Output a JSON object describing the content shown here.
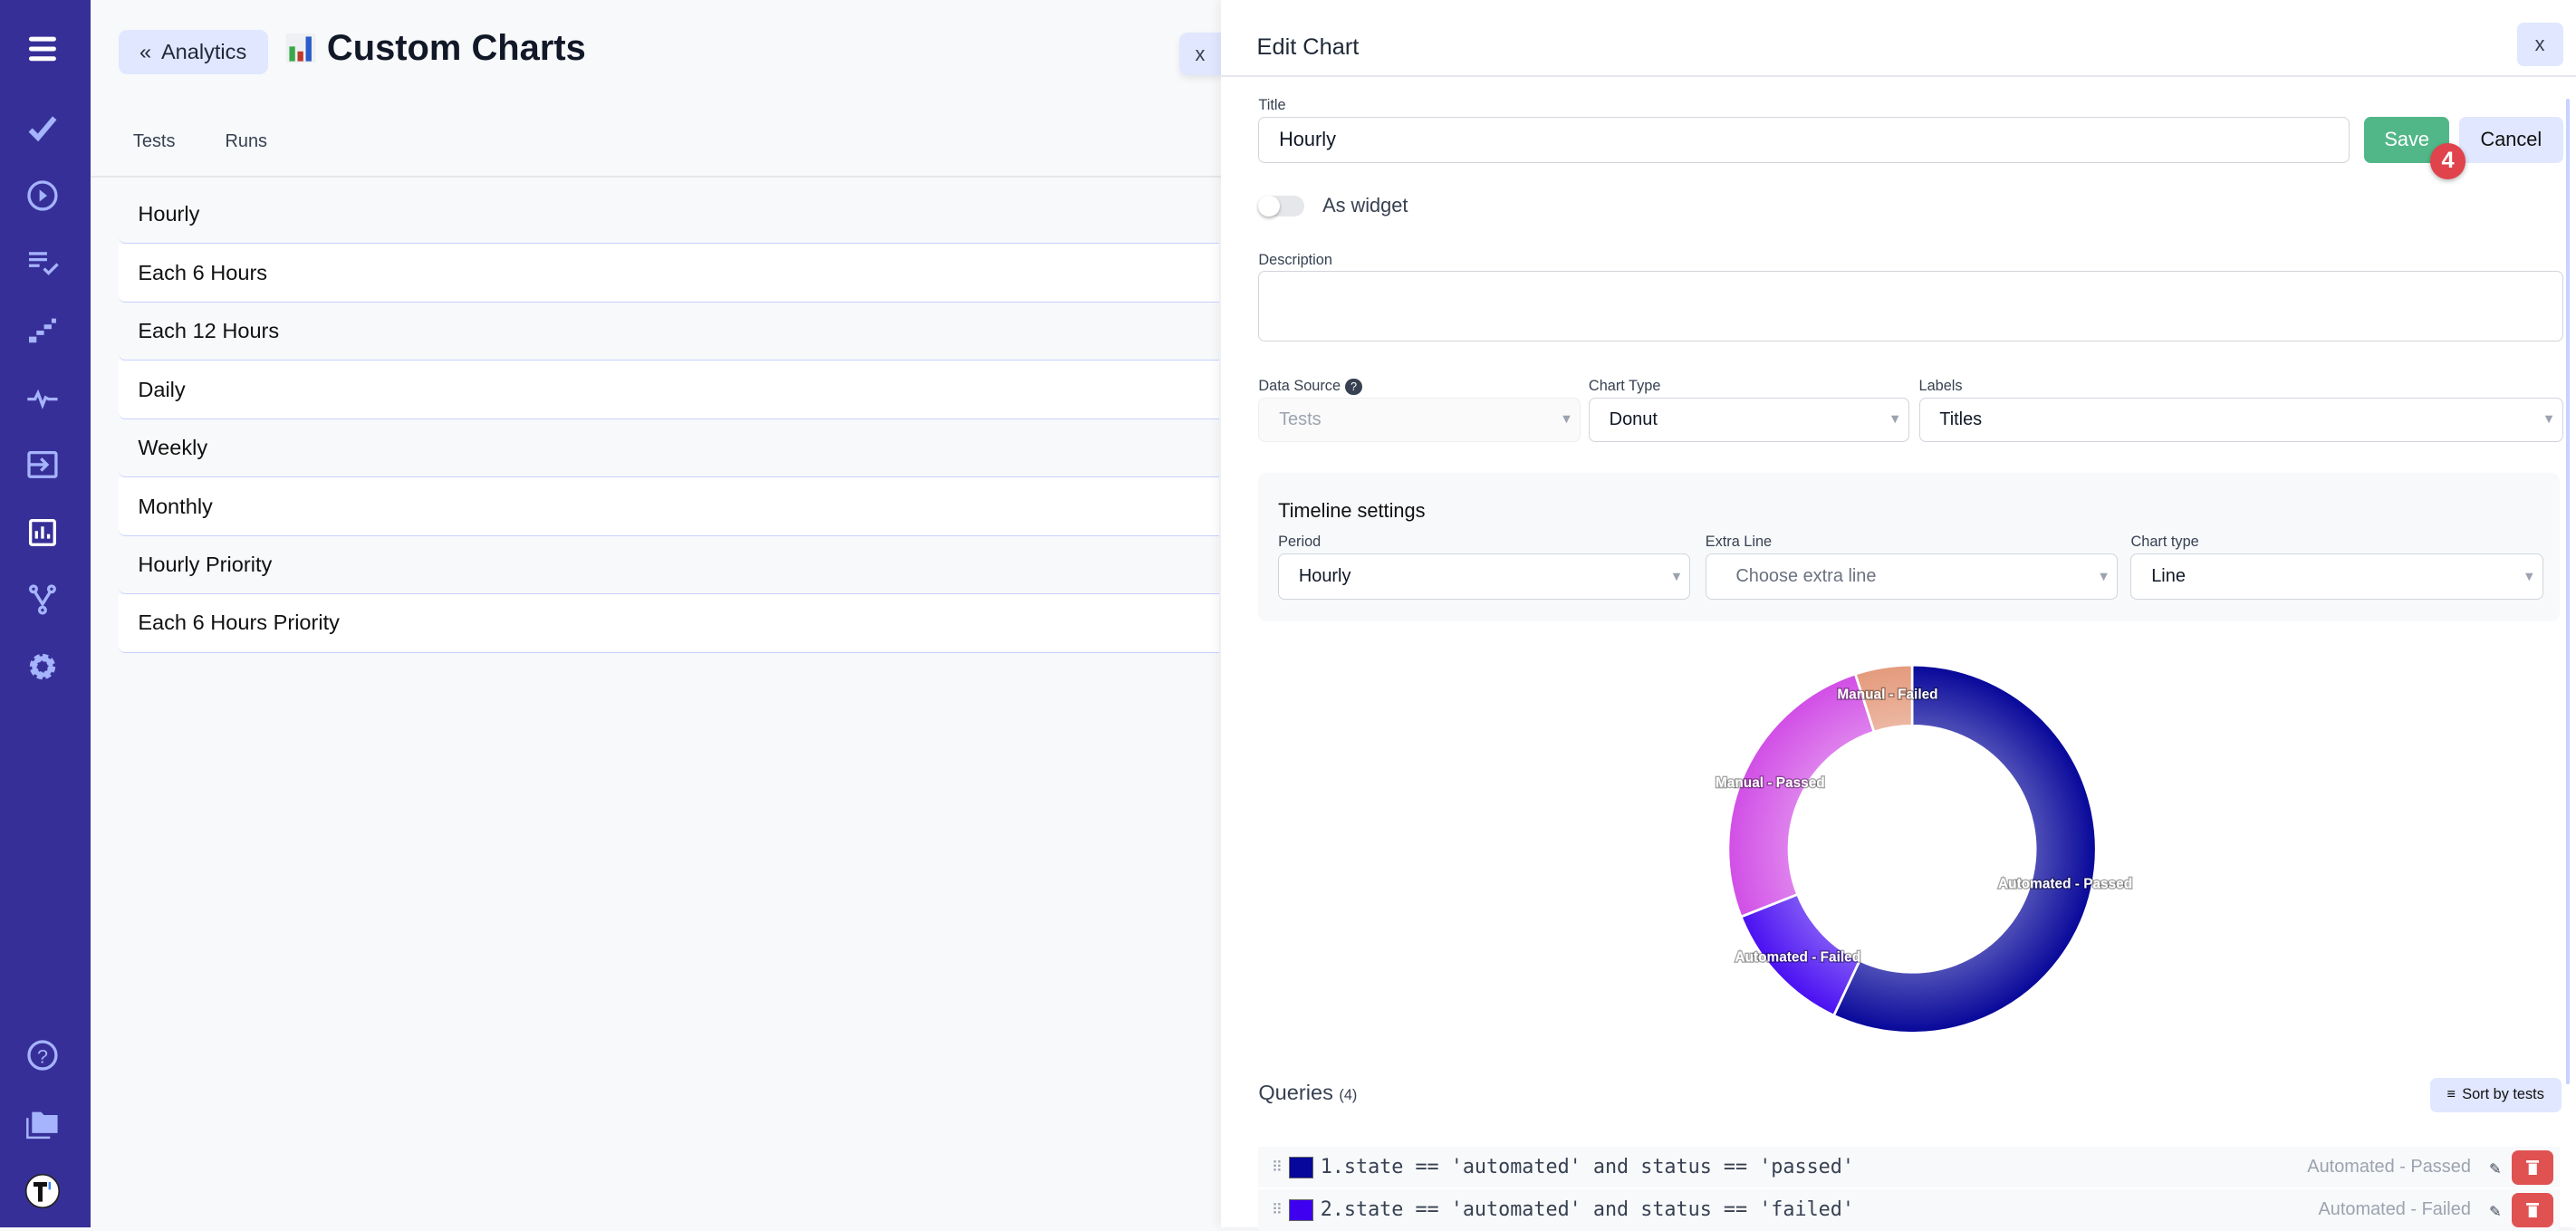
{
  "sidebar": {
    "items": [
      {
        "icon": "menu-icon"
      },
      {
        "icon": "checkmark-icon"
      },
      {
        "icon": "play-circle-icon"
      },
      {
        "icon": "list-check-icon"
      },
      {
        "icon": "steps-icon"
      },
      {
        "icon": "pulse-icon"
      },
      {
        "icon": "import-icon"
      },
      {
        "icon": "analytics-chart-icon",
        "active": true
      },
      {
        "icon": "branch-icon"
      },
      {
        "icon": "gear-icon"
      },
      {
        "icon": "help-icon"
      },
      {
        "icon": "folder-icon"
      },
      {
        "icon": "avatar-logo"
      }
    ],
    "bg_color": "#372f98",
    "icon_color": "#a5b4fc"
  },
  "left": {
    "back_label": "Analytics",
    "title": "Custom Charts",
    "tabs": [
      "Tests",
      "Runs"
    ],
    "charts": [
      "Hourly",
      "Each 6 Hours",
      "Each 12 Hours",
      "Daily",
      "Weekly",
      "Monthly",
      "Hourly Priority",
      "Each 6 Hours Priority"
    ],
    "close_label": "x"
  },
  "edit": {
    "header": "Edit Chart",
    "close_label": "x",
    "title_label": "Title",
    "title_value": "Hourly",
    "save_label": "Save",
    "cancel_label": "Cancel",
    "badge": "4",
    "widget_label": "As widget",
    "widget_on": false,
    "description_label": "Description",
    "description_value": "",
    "data_source_label": "Data Source",
    "data_source_value": "Tests",
    "chart_type_label": "Chart Type",
    "chart_type_value": "Donut",
    "labels_label": "Labels",
    "labels_value": "Titles",
    "timeline": {
      "title": "Timeline settings",
      "period_label": "Period",
      "period_value": "Hourly",
      "extra_label": "Extra Line",
      "extra_placeholder": "Choose extra line",
      "type_label": "Chart type",
      "type_value": "Line"
    },
    "queries_title": "Queries",
    "queries_count": "(4)",
    "sort_label": "Sort by tests",
    "queries": [
      {
        "text": "1.state == 'automated' and status == 'passed'",
        "name": "Automated - Passed",
        "color": "#07079a"
      },
      {
        "text": "2.state == 'automated' and status == 'failed'",
        "name": "Automated - Failed",
        "color": "#3f00f0"
      }
    ]
  },
  "chart_data": {
    "type": "pie",
    "donut": true,
    "slices": [
      {
        "label": "Automated - Passed",
        "value": 57,
        "color": "#07079a"
      },
      {
        "label": "Automated - Failed",
        "value": 12,
        "color": "#4a10f2"
      },
      {
        "label": "Manual - Passed",
        "value": 26,
        "color": "#d14ee6"
      },
      {
        "label": "Manual - Failed",
        "value": 5,
        "color": "#e49a7c"
      }
    ]
  }
}
